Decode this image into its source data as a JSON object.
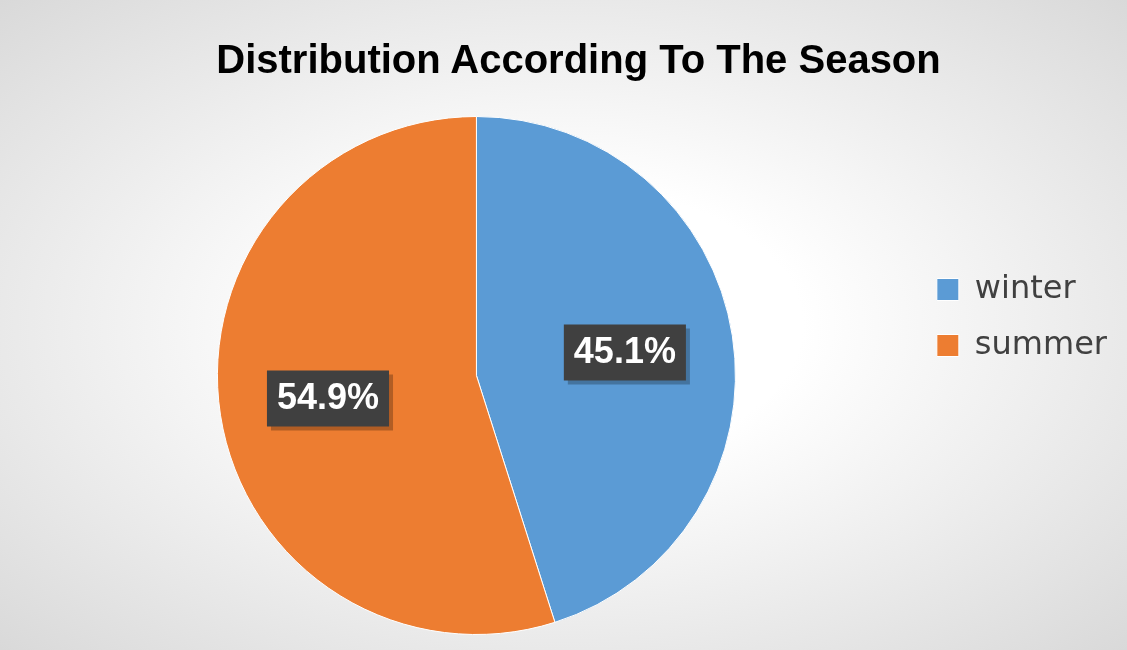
{
  "chart_data": {
    "type": "pie",
    "title": "Distribution According To The Season",
    "categories": [
      "winter",
      "summer"
    ],
    "values": [
      45.1,
      54.9
    ],
    "colors": [
      "#5b9bd5",
      "#ed7d31"
    ],
    "value_labels": [
      "45.1%",
      "54.9%"
    ],
    "legend": "right"
  }
}
